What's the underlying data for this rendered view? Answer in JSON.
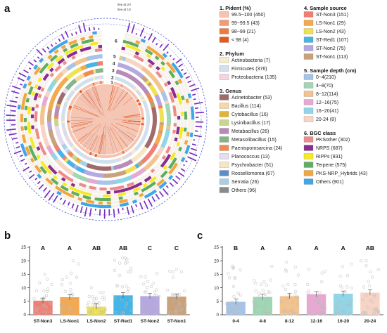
{
  "panels": {
    "a": "a",
    "b": "b",
    "c": "c"
  },
  "circos": {
    "ring_numbers": [
      "1",
      "2",
      "3",
      "4",
      "5",
      "6"
    ],
    "ref_lines": [
      "line at 20",
      "line at 10"
    ]
  },
  "legend_a": [
    {
      "title": "1. Pident (%)",
      "items": [
        {
          "label": "99.5~100 (450)",
          "color": "#f6c3ae"
        },
        {
          "label": "99~99.5 (43)",
          "color": "#f29b73"
        },
        {
          "label": "98~99 (21)",
          "color": "#ee7a3e"
        },
        {
          "label": "< 98 (4)",
          "color": "#e8571b"
        }
      ]
    },
    {
      "title": "2. Phylum",
      "items": [
        {
          "label": "Actinobacteria (7)",
          "color": "#f6ecc9"
        },
        {
          "label": "Firmicutes (376)",
          "color": "#cfe0ee"
        },
        {
          "label": "Proteobacteria (135)",
          "color": "#f5d3df"
        }
      ]
    },
    {
      "title": "3. Genus",
      "items": [
        {
          "label": "Acinetobacter (53)",
          "color": "#a16a6a"
        },
        {
          "label": "Bacillus (114)",
          "color": "#f5d9a0"
        },
        {
          "label": "Cytobacillus (16)",
          "color": "#e0b23a"
        },
        {
          "label": "Lysinibacillus (17)",
          "color": "#c8d48f"
        },
        {
          "label": "Metabacillus (26)",
          "color": "#b88ab8"
        },
        {
          "label": "Metasolibacillus (15)",
          "color": "#85b585"
        },
        {
          "label": "Paenisporosarcina (24)",
          "color": "#f08a4f"
        },
        {
          "label": "Planococcus (13)",
          "color": "#e4dcf0"
        },
        {
          "label": "Psychrobacter (51)",
          "color": "#f7e6c4"
        },
        {
          "label": "Rossellomorea (67)",
          "color": "#5b8ec6"
        },
        {
          "label": "Serratia (26)",
          "color": "#a9cfe8"
        },
        {
          "label": "Others (96)",
          "color": "#8a8a8a"
        }
      ]
    },
    {
      "title": "4. Sample source",
      "items": [
        {
          "label": "ST-Non3 (151)",
          "color": "#ef7f72"
        },
        {
          "label": "LS-Non1 (29)",
          "color": "#f4a94f"
        },
        {
          "label": "LS-Non2 (43)",
          "color": "#f0e152"
        },
        {
          "label": "ST-Red1 (107)",
          "color": "#45b4e6"
        },
        {
          "label": "ST-Non2 (75)",
          "color": "#b5a7e0"
        },
        {
          "label": "ST-Non1 (113)",
          "color": "#c9a27c"
        }
      ]
    },
    {
      "title": "5. Sample depth (cm)",
      "items": [
        {
          "label": "0~4(210)",
          "color": "#a7c4e8"
        },
        {
          "label": "4~8(70)",
          "color": "#9fd6b4"
        },
        {
          "label": "8~12(114)",
          "color": "#f3c38f"
        },
        {
          "label": "12~16(75)",
          "color": "#e6a9d2"
        },
        {
          "label": "16~20(41)",
          "color": "#90d5e8"
        },
        {
          "label": "20-24 (8)",
          "color": "#f6d4c6"
        }
      ]
    },
    {
      "title": "6. BGC class",
      "items": [
        {
          "label": "PKSother (302)",
          "color": "#ee8a8a"
        },
        {
          "label": "NRPS (687)",
          "color": "#8a2d8f"
        },
        {
          "label": "RiPPs (831)",
          "color": "#f5ea28"
        },
        {
          "label": "Terpene (575)",
          "color": "#5fae5f"
        },
        {
          "label": "PKS-NRP_Hybrids (43)",
          "color": "#f2a640"
        },
        {
          "label": "Others (901)",
          "color": "#3fa6e8"
        }
      ]
    }
  ],
  "chart_data": [
    {
      "type": "bar",
      "panel": "b",
      "categories": [
        "ST-Non3",
        "LS-Non1",
        "LS-Non2",
        "ST-Red1",
        "ST-Non2",
        "ST-Non1"
      ],
      "values": [
        5.2,
        6.5,
        3.0,
        7.2,
        6.9,
        6.7
      ],
      "colors": [
        "#ef7f72",
        "#f4a94f",
        "#f0e152",
        "#45b4e6",
        "#b5a7e0",
        "#c9a27c"
      ],
      "letters": [
        "A",
        "A",
        "AB",
        "AB",
        "C",
        "C"
      ],
      "yticks": [
        0,
        5,
        10,
        15,
        20,
        25
      ],
      "ylim": [
        0,
        25
      ],
      "points_max": [
        19,
        20,
        10,
        21,
        16,
        19
      ]
    },
    {
      "type": "bar",
      "panel": "c",
      "categories": [
        "0-4",
        "4-8",
        "8-12",
        "12-16",
        "16-20",
        "20-24"
      ],
      "values": [
        4.8,
        6.6,
        6.9,
        7.6,
        7.8,
        8.2
      ],
      "colors": [
        "#a7c4e8",
        "#9fd6b4",
        "#f3c38f",
        "#e6a9d2",
        "#90d5e8",
        "#f6d4c6"
      ],
      "letters": [
        "B",
        "A",
        "A",
        "A",
        "A",
        "AB"
      ],
      "yticks": [
        0,
        5,
        10,
        15,
        20,
        25
      ],
      "ylim": [
        0,
        25
      ],
      "points_max": [
        18,
        20,
        21,
        17,
        19,
        20
      ]
    }
  ]
}
